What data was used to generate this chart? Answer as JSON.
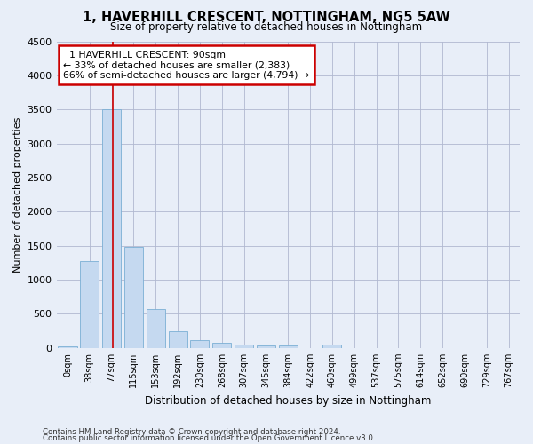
{
  "title": "1, HAVERHILL CRESCENT, NOTTINGHAM, NG5 5AW",
  "subtitle": "Size of property relative to detached houses in Nottingham",
  "xlabel": "Distribution of detached houses by size in Nottingham",
  "ylabel": "Number of detached properties",
  "bar_color": "#c5d9f0",
  "bar_edge_color": "#7bafd4",
  "background_color": "#e8eef8",
  "grid_color": "#b0b8d0",
  "categories": [
    "0sqm",
    "38sqm",
    "77sqm",
    "115sqm",
    "153sqm",
    "192sqm",
    "230sqm",
    "268sqm",
    "307sqm",
    "345sqm",
    "384sqm",
    "422sqm",
    "460sqm",
    "499sqm",
    "537sqm",
    "575sqm",
    "614sqm",
    "652sqm",
    "690sqm",
    "729sqm",
    "767sqm"
  ],
  "values": [
    30,
    1270,
    3500,
    1480,
    575,
    240,
    115,
    80,
    50,
    40,
    40,
    0,
    55,
    0,
    0,
    0,
    0,
    0,
    0,
    0,
    0
  ],
  "ylim": [
    0,
    4500
  ],
  "yticks": [
    0,
    500,
    1000,
    1500,
    2000,
    2500,
    3000,
    3500,
    4000,
    4500
  ],
  "property_bin_index": 2,
  "annotation_text": "  1 HAVERHILL CRESCENT: 90sqm\n← 33% of detached houses are smaller (2,383)\n66% of semi-detached houses are larger (4,794) →",
  "annotation_box_color": "#ffffff",
  "annotation_border_color": "#cc0000",
  "vline_color": "#cc0000",
  "footnote1": "Contains HM Land Registry data © Crown copyright and database right 2024.",
  "footnote2": "Contains public sector information licensed under the Open Government Licence v3.0."
}
